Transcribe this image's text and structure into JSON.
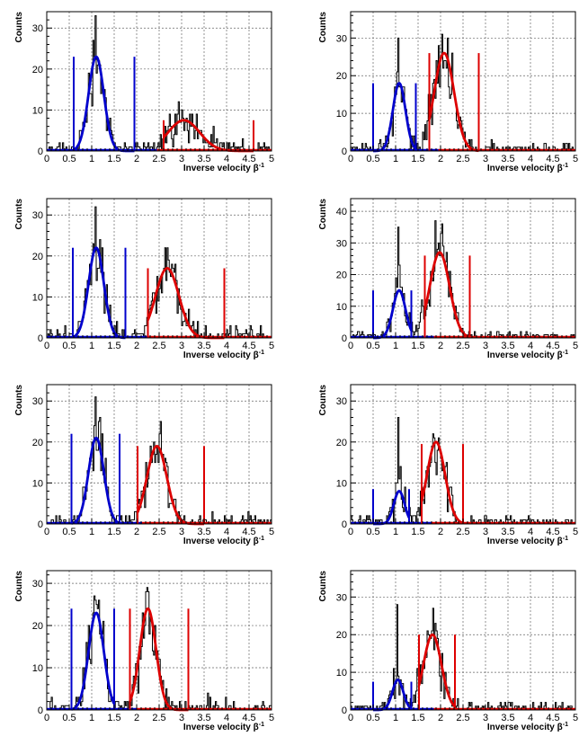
{
  "figure": {
    "xlabel": "Inverse velocity β",
    "xlabel_sup": "-1",
    "ylabel": "Counts"
  },
  "colors": {
    "data": "#000000",
    "blue": "#0000cc",
    "red": "#dd0000",
    "grid": "#666666"
  },
  "chart_data": [
    {
      "type": "histogram",
      "panel": "row1-left",
      "xlim": [
        0,
        5
      ],
      "ylim": [
        0,
        34
      ],
      "xticks": [
        "0",
        "0.5",
        "1",
        "1.5",
        "2",
        "2.5",
        "3",
        "3.5",
        "4",
        "4.5",
        "5"
      ],
      "yticks": [
        "0",
        "10",
        "20",
        "30"
      ],
      "peak1": {
        "mean": 1.1,
        "sigma": 0.17,
        "amplitude": 23,
        "window": [
          0.6,
          1.95
        ]
      },
      "peak2": {
        "mean": 3.05,
        "sigma": 0.35,
        "amplitude": 7.5,
        "window": [
          2.6,
          4.6
        ]
      },
      "blue_cut_height": 23,
      "red_cut_height": 7.5,
      "background": 0.3,
      "data_max": 33
    },
    {
      "type": "histogram",
      "panel": "row1-right",
      "xlim": [
        0,
        5
      ],
      "ylim": [
        0,
        37
      ],
      "xticks": [
        "0",
        "0.5",
        "1",
        "1.5",
        "2",
        "2.5",
        "3",
        "3.5",
        "4",
        "4.5",
        "5"
      ],
      "yticks": [
        "0",
        "10",
        "20",
        "30"
      ],
      "peak1": {
        "mean": 1.08,
        "sigma": 0.14,
        "amplitude": 18,
        "window": [
          0.5,
          1.45
        ]
      },
      "peak2": {
        "mean": 2.08,
        "sigma": 0.22,
        "amplitude": 26,
        "window": [
          1.75,
          2.85
        ]
      },
      "blue_cut_height": 18,
      "red_cut_height": 26,
      "background": 0.3,
      "data_max": 35
    },
    {
      "type": "histogram",
      "panel": "row2-left",
      "xlim": [
        0,
        5
      ],
      "ylim": [
        0,
        34
      ],
      "xticks": [
        "0",
        "0.5",
        "1",
        "1.5",
        "2",
        "2.5",
        "3",
        "3.5",
        "4",
        "4.5",
        "5"
      ],
      "yticks": [
        "0",
        "10",
        "20",
        "30"
      ],
      "peak1": {
        "mean": 1.1,
        "sigma": 0.17,
        "amplitude": 22,
        "window": [
          0.58,
          1.75
        ]
      },
      "peak2": {
        "mean": 2.68,
        "sigma": 0.26,
        "amplitude": 17,
        "window": [
          2.25,
          3.95
        ]
      },
      "blue_cut_height": 22,
      "red_cut_height": 17,
      "background": 0.5,
      "data_max": 32
    },
    {
      "type": "histogram",
      "panel": "row2-right",
      "xlim": [
        0,
        5
      ],
      "ylim": [
        0,
        44
      ],
      "xticks": [
        "0",
        "0.5",
        "1",
        "1.5",
        "2",
        "2.5",
        "3",
        "3.5",
        "4",
        "4.5",
        "5"
      ],
      "yticks": [
        "0",
        "10",
        "20",
        "30",
        "40"
      ],
      "peak1": {
        "mean": 1.08,
        "sigma": 0.14,
        "amplitude": 15,
        "window": [
          0.5,
          1.35
        ]
      },
      "peak2": {
        "mean": 1.98,
        "sigma": 0.22,
        "amplitude": 27,
        "window": [
          1.65,
          2.65
        ]
      },
      "blue_cut_height": 15,
      "red_cut_height": 26,
      "background": 0.3,
      "data_max": 41
    },
    {
      "type": "histogram",
      "panel": "row3-left",
      "xlim": [
        0,
        5
      ],
      "ylim": [
        0,
        34
      ],
      "xticks": [
        "0",
        "0.5",
        "1",
        "1.5",
        "2",
        "2.5",
        "3",
        "3.5",
        "4",
        "4.5",
        "5"
      ],
      "yticks": [
        "0",
        "10",
        "20",
        "30"
      ],
      "peak1": {
        "mean": 1.1,
        "sigma": 0.17,
        "amplitude": 21,
        "window": [
          0.55,
          1.62
        ]
      },
      "peak2": {
        "mean": 2.45,
        "sigma": 0.22,
        "amplitude": 19,
        "window": [
          2.02,
          3.5
        ]
      },
      "blue_cut_height": 22,
      "red_cut_height": 19,
      "background": 0.5,
      "data_max": 31
    },
    {
      "type": "histogram",
      "panel": "row3-right",
      "xlim": [
        0,
        5
      ],
      "ylim": [
        0,
        34
      ],
      "xticks": [
        "0",
        "0.5",
        "1",
        "1.5",
        "2",
        "2.5",
        "3",
        "3.5",
        "4",
        "4.5",
        "5"
      ],
      "yticks": [
        "0",
        "10",
        "20",
        "30"
      ],
      "peak1": {
        "mean": 1.08,
        "sigma": 0.12,
        "amplitude": 8,
        "window": [
          0.5,
          1.3
        ]
      },
      "peak2": {
        "mean": 1.9,
        "sigma": 0.2,
        "amplitude": 20,
        "window": [
          1.58,
          2.5
        ]
      },
      "blue_cut_height": 8.5,
      "red_cut_height": 19.5,
      "background": 0.3,
      "data_max": 31
    },
    {
      "type": "histogram",
      "panel": "row4-left",
      "xlim": [
        0,
        5
      ],
      "ylim": [
        0,
        33
      ],
      "xticks": [
        "0",
        "0.5",
        "1",
        "1.5",
        "2",
        "2.5",
        "3",
        "3.5",
        "4",
        "4.5",
        "5"
      ],
      "yticks": [
        "0",
        "10",
        "20",
        "30"
      ],
      "peak1": {
        "mean": 1.1,
        "sigma": 0.17,
        "amplitude": 23,
        "window": [
          0.55,
          1.5
        ]
      },
      "peak2": {
        "mean": 2.25,
        "sigma": 0.18,
        "amplitude": 24,
        "window": [
          1.85,
          3.15
        ]
      },
      "blue_cut_height": 24,
      "red_cut_height": 24,
      "background": 0.5,
      "data_max": 31
    },
    {
      "type": "histogram",
      "panel": "row4-right",
      "xlim": [
        0,
        5
      ],
      "ylim": [
        0,
        37
      ],
      "xticks": [
        "0",
        "0.5",
        "1",
        "1.5",
        "2",
        "2.5",
        "3",
        "3.5",
        "4",
        "4.5",
        "5"
      ],
      "yticks": [
        "0",
        "10",
        "20",
        "30"
      ],
      "peak1": {
        "mean": 1.05,
        "sigma": 0.12,
        "amplitude": 8,
        "window": [
          0.5,
          1.35
        ]
      },
      "peak2": {
        "mean": 1.82,
        "sigma": 0.2,
        "amplitude": 20,
        "window": [
          1.52,
          2.32
        ]
      },
      "blue_cut_height": 7.5,
      "red_cut_height": 20,
      "background": 0.3,
      "data_max": 33
    }
  ]
}
